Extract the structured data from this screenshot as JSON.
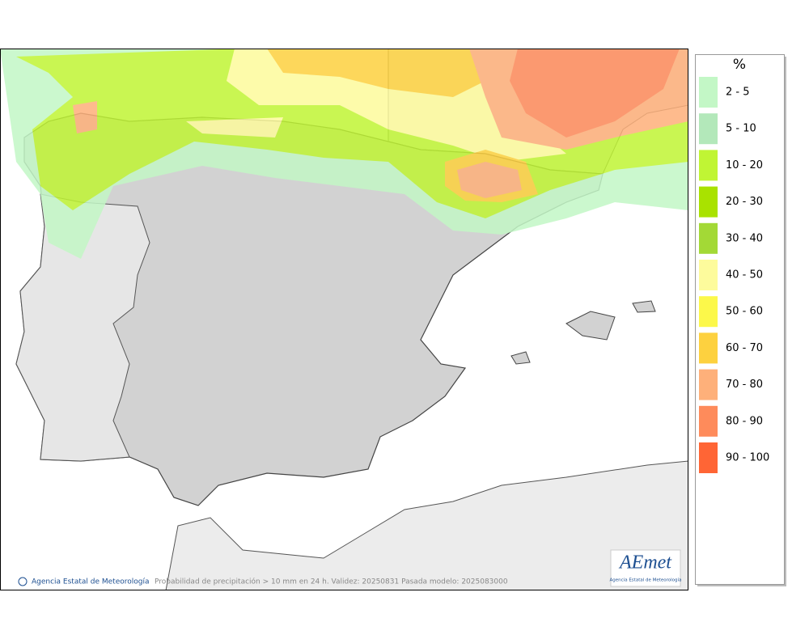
{
  "legend": {
    "unit": "%",
    "items": [
      {
        "label": "2 - 5",
        "color": "#c3f7c6"
      },
      {
        "label": "5 - 10",
        "color": "#b3e8ba"
      },
      {
        "label": "10 - 20",
        "color": "#c0f534"
      },
      {
        "label": "20 - 30",
        "color": "#a9e200"
      },
      {
        "label": "30 - 40",
        "color": "#a3d936"
      },
      {
        "label": "40 - 50",
        "color": "#fdfb9c"
      },
      {
        "label": "50 - 60",
        "color": "#fcf84a"
      },
      {
        "label": "60 - 70",
        "color": "#fdd13f"
      },
      {
        "label": "70 - 80",
        "color": "#feb07a"
      },
      {
        "label": "80 - 90",
        "color": "#fe8b5b"
      },
      {
        "label": "90 - 100",
        "color": "#ff6535"
      }
    ]
  },
  "credit": "Agencia Estatal de Meteorología",
  "caption": "Probabilidad de precipitación > 10 mm en 24 h. Validez: 20250831 Pasada modelo: 2025083000",
  "logo": {
    "name": "AEmet",
    "subtitle": "Agencia Estatal de Meteorología"
  }
}
